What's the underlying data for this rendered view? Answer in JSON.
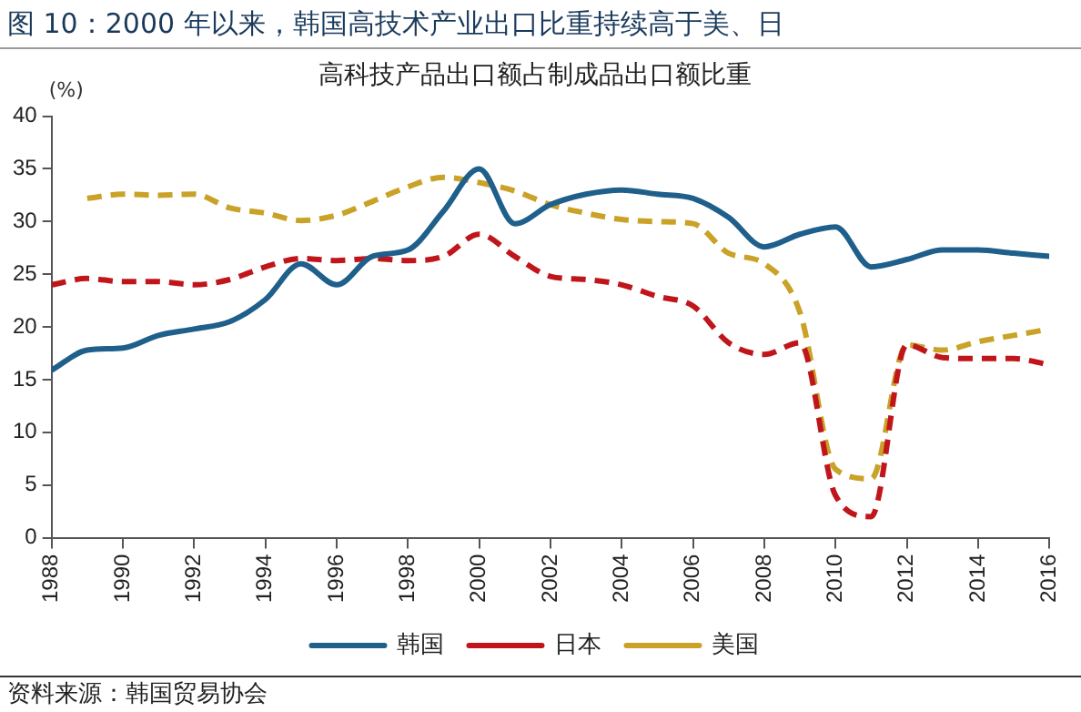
{
  "chart_data": {
    "type": "line",
    "title": "图 10：2000 年以来，韩国高技术产业出口比重持续高于美、日",
    "subtitle": "高科技产品出口额占制成品出口额比重",
    "ylabel": "(%)",
    "annotations": [
      "资料来源：韩国贸易协会"
    ],
    "x": [
      1988,
      1989,
      1990,
      1991,
      1992,
      1993,
      1994,
      1995,
      1996,
      1997,
      1998,
      1999,
      2000,
      2001,
      2002,
      2003,
      2004,
      2005,
      2006,
      2007,
      2008,
      2009,
      2010,
      2011,
      2012,
      2013,
      2014,
      2015,
      2016
    ],
    "series": [
      {
        "name": "韩国",
        "color": "#1f5f8b",
        "line_style": "solid",
        "values": [
          15.9,
          17.8,
          18,
          19.2,
          19.8,
          20.5,
          22.6,
          26,
          24,
          26.7,
          27.3,
          31,
          35,
          29.8,
          31.6,
          32.6,
          33,
          32.6,
          32.2,
          30.4,
          27.6,
          28.8,
          29.5,
          25.7,
          26.4,
          27.3,
          27.3,
          27,
          26.7
        ]
      },
      {
        "name": "日本",
        "color": "#c0161b",
        "line_style": "dashed",
        "values": [
          24,
          24.6,
          24.3,
          24.3,
          24,
          24.5,
          25.7,
          26.5,
          26.3,
          26.5,
          26.3,
          26.7,
          28.8,
          26.7,
          24.8,
          24.5,
          24,
          22.9,
          22,
          18.5,
          17.4,
          18.5,
          4,
          2,
          18.3,
          17.1,
          17,
          17,
          16.4
        ]
      },
      {
        "name": "美国",
        "color": "#c9a227",
        "line_style": "dashed",
        "values": [
          null,
          32.2,
          32.6,
          32.5,
          32.6,
          31.3,
          30.8,
          30.1,
          30.6,
          31.9,
          33.3,
          34.2,
          33.7,
          32.9,
          31.6,
          30.8,
          30.2,
          30,
          29.8,
          27,
          26,
          21.4,
          6.5,
          5.6,
          18.3,
          17.8,
          18.6,
          19.2,
          19.8
        ]
      }
    ],
    "xlim": [
      1988,
      2016
    ],
    "xticks": [
      1988,
      1990,
      1992,
      1994,
      1996,
      1998,
      2000,
      2002,
      2004,
      2006,
      2008,
      2010,
      2012,
      2014,
      2016
    ],
    "ylim": [
      0,
      40
    ],
    "yticks": [
      0,
      5,
      10,
      15,
      20,
      25,
      30,
      35,
      40
    ],
    "grid": false,
    "legend": "bottom",
    "marker": "none"
  }
}
